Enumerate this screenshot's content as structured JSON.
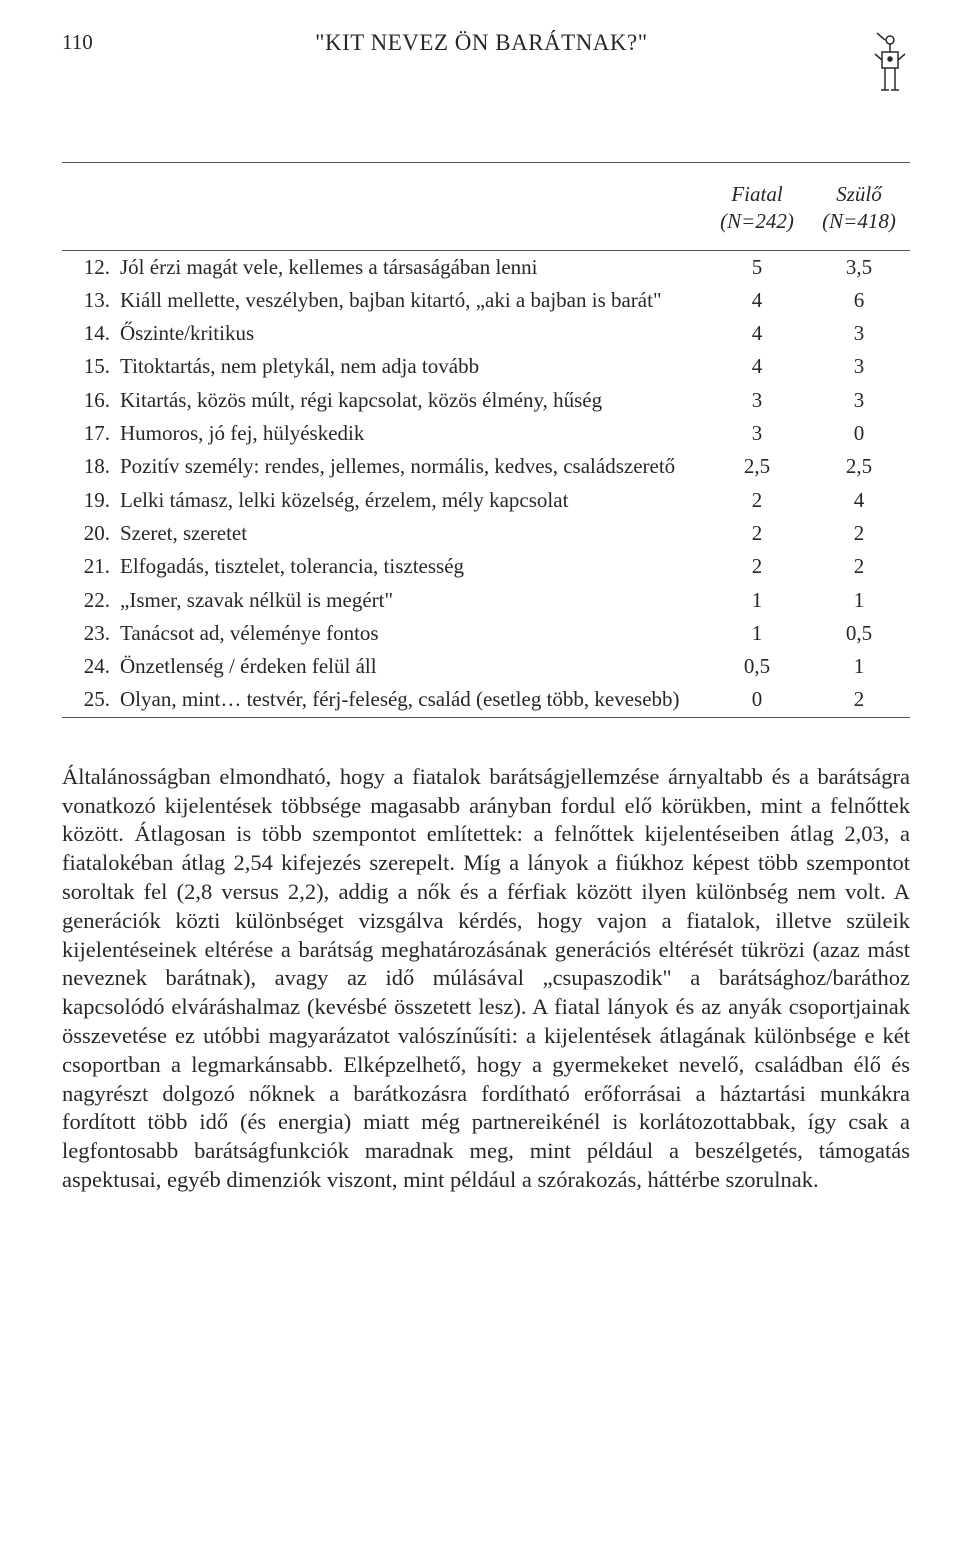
{
  "header": {
    "page_number": "110",
    "title": "\"KIT NEVEZ ÖN BARÁTNAK?\""
  },
  "table": {
    "col_headers": {
      "fiatal_line1": "Fiatal",
      "fiatal_line2": "(N=242)",
      "szulo_line1": "Szülő",
      "szulo_line2": "(N=418)"
    },
    "rows": [
      {
        "n": "12.",
        "text": "Jól érzi magát vele, kellemes a társaságában lenni",
        "v1": "5",
        "v2": "3,5"
      },
      {
        "n": "13.",
        "text": "Kiáll mellette, veszélyben, bajban kitartó, „aki a bajban is barát\"",
        "v1": "4",
        "v2": "6"
      },
      {
        "n": "14.",
        "text": "Őszinte/kritikus",
        "v1": "4",
        "v2": "3"
      },
      {
        "n": "15.",
        "text": "Titoktartás, nem pletykál, nem adja tovább",
        "v1": "4",
        "v2": "3"
      },
      {
        "n": "16.",
        "text": "Kitartás, közös múlt, régi kapcsolat, közös élmény, hűség",
        "v1": "3",
        "v2": "3"
      },
      {
        "n": "17.",
        "text": "Humoros, jó fej, hülyéskedik",
        "v1": "3",
        "v2": "0"
      },
      {
        "n": "18.",
        "text": "Pozitív személy: rendes, jellemes, normális, kedves, családszerető",
        "v1": "2,5",
        "v2": "2,5"
      },
      {
        "n": "19.",
        "text": "Lelki támasz, lelki közelség, érzelem, mély kapcsolat",
        "v1": "2",
        "v2": "4"
      },
      {
        "n": "20.",
        "text": "Szeret, szeretet",
        "v1": "2",
        "v2": "2"
      },
      {
        "n": "21.",
        "text": "Elfogadás, tisztelet, tolerancia, tisztesség",
        "v1": "2",
        "v2": "2"
      },
      {
        "n": "22.",
        "text": "„Ismer, szavak nélkül is megért\"",
        "v1": "1",
        "v2": "1"
      },
      {
        "n": "23.",
        "text": "Tanácsot ad, véleménye fontos",
        "v1": "1",
        "v2": "0,5"
      },
      {
        "n": "24.",
        "text": "Önzetlenség / érdeken felül áll",
        "v1": "0,5",
        "v2": "1"
      },
      {
        "n": "25.",
        "text": "Olyan, mint… testvér, férj-feleség, család (esetleg több, kevesebb)",
        "v1": "0",
        "v2": "2"
      }
    ]
  },
  "paragraph": "Általánosságban elmondható, hogy a fiatalok barátságjellemzése árnyaltabb és a barátságra vonatkozó kijelentések többsége magasabb arányban fordul elő körükben, mint a felnőttek között. Átlagosan is több szempontot említettek: a felnőttek kijelentéseiben átlag 2,03, a fiatalokéban átlag 2,54 kifejezés szerepelt. Míg a lányok a fiúkhoz képest több szempontot soroltak fel (2,8 versus 2,2), addig a nők és a férfiak között ilyen különbség nem volt. A generációk közti különbséget vizsgálva kérdés, hogy vajon a fiatalok, illetve szüleik kijelentéseinek eltérése a barátság meghatározásának generációs eltérését tükrözi (azaz mást neveznek barátnak), avagy az idő múlásával „csupaszodik\" a barátsághoz/baráthoz kapcsolódó elváráshalmaz (kevésbé összetett lesz). A fiatal lányok és az anyák csoportjainak összevetése ez utóbbi magyarázatot valószínűsíti: a kijelentések átlagának különbsége e két csoportban a legmarkánsabb. Elképzelhető, hogy a gyermekeket nevelő, családban élő és nagyrészt dolgozó nőknek a barátkozásra fordítható erőforrásai a háztartási munkákra fordított több idő (és energia) miatt még partnereikénél is korlátozottabbak, így csak a legfontosabb barátságfunkciók maradnak meg, mint például a beszélgetés, támogatás aspektusai, egyéb dimenziók viszont, mint például a szórakozás, háttérbe szorulnak."
}
